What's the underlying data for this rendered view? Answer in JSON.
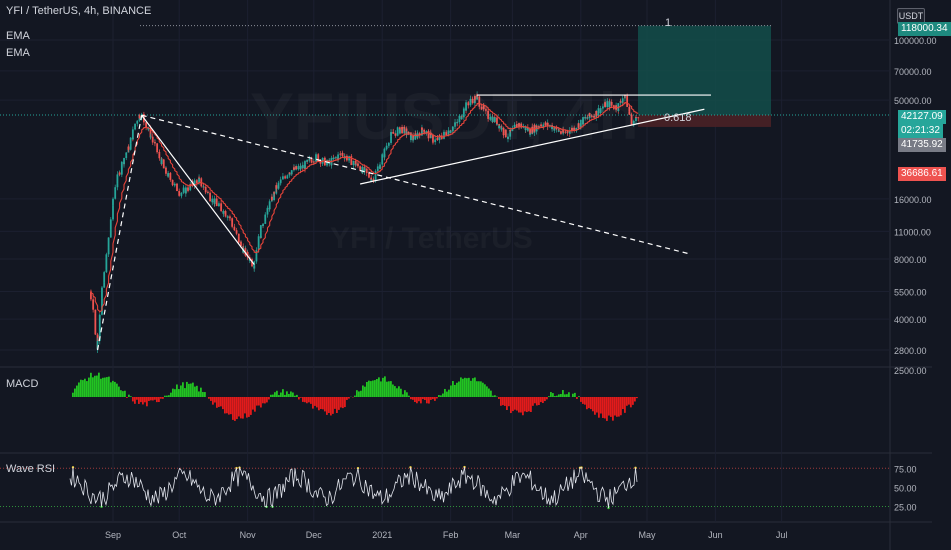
{
  "header": {
    "title": "YFI / TetherUS, 4h, BINANCE",
    "indicators": [
      "EMA",
      "EMA"
    ]
  },
  "watermark": {
    "ticker": "YFIUSDT, 4h",
    "name": "YFI / TetherUS"
  },
  "currency_button": "USDT",
  "axis": {
    "price_ticks": [
      "100000.00",
      "70000.00",
      "50000.00",
      "16000.00",
      "11000.00",
      "8000.00",
      "5500.00",
      "4000.00",
      "2800.00"
    ],
    "time_labels": [
      "Sep",
      "Oct",
      "Nov",
      "Dec",
      "2021",
      "Feb",
      "Mar",
      "Apr",
      "May",
      "Jun",
      "Jul"
    ],
    "macd_tick": "2500.00",
    "rsi_ticks": [
      "75.00",
      "50.00",
      "25.00"
    ]
  },
  "price_badges": {
    "target": "118000.34",
    "current": "42127.09",
    "countdown": "02:21:32",
    "ema": "41735.92",
    "stop": "36686.61"
  },
  "fib_labels": {
    "top": "1",
    "mid": "0.618"
  },
  "panes": {
    "macd": "MACD",
    "rsi": "Wave RSI"
  },
  "colors": {
    "background": "#131722",
    "bull": "#26a69a",
    "bear": "#ef5350",
    "macd_up": "#22c322",
    "macd_down": "#e31b1b",
    "ema": "#e8443a",
    "target_zone": "#134e4a",
    "stop_zone": "#4a2126"
  },
  "chart_data": {
    "type": "candlestick",
    "log_scale": true,
    "series_close": [
      [
        "2020-08-22",
        5500
      ],
      [
        "2020-08-24",
        4200
      ],
      [
        "2020-08-25",
        2800
      ],
      [
        "2020-08-27",
        5000
      ],
      [
        "2020-08-30",
        9000
      ],
      [
        "2020-09-02",
        18000
      ],
      [
        "2020-09-06",
        25000
      ],
      [
        "2020-09-09",
        30000
      ],
      [
        "2020-09-12",
        40000
      ],
      [
        "2020-09-14",
        43000
      ],
      [
        "2020-09-16",
        38000
      ],
      [
        "2020-09-20",
        30000
      ],
      [
        "2020-09-25",
        22000
      ],
      [
        "2020-10-02",
        17000
      ],
      [
        "2020-10-10",
        20000
      ],
      [
        "2020-10-16",
        16000
      ],
      [
        "2020-10-24",
        13000
      ],
      [
        "2020-10-30",
        9000
      ],
      [
        "2020-11-04",
        7500
      ],
      [
        "2020-11-08",
        12000
      ],
      [
        "2020-11-14",
        18000
      ],
      [
        "2020-11-20",
        22000
      ],
      [
        "2020-11-26",
        23000
      ],
      [
        "2020-12-02",
        26000
      ],
      [
        "2020-12-08",
        24000
      ],
      [
        "2020-12-14",
        27000
      ],
      [
        "2020-12-20",
        24000
      ],
      [
        "2020-12-24",
        22000
      ],
      [
        "2020-12-28",
        20000
      ],
      [
        "2021-01-01",
        25000
      ],
      [
        "2021-01-05",
        33000
      ],
      [
        "2021-01-10",
        36000
      ],
      [
        "2021-01-15",
        32000
      ],
      [
        "2021-01-20",
        36000
      ],
      [
        "2021-01-25",
        31000
      ],
      [
        "2021-01-30",
        34000
      ],
      [
        "2021-02-04",
        38000
      ],
      [
        "2021-02-09",
        48000
      ],
      [
        "2021-02-13",
        52000
      ],
      [
        "2021-02-17",
        43000
      ],
      [
        "2021-02-22",
        39000
      ],
      [
        "2021-02-27",
        33000
      ],
      [
        "2021-03-04",
        38000
      ],
      [
        "2021-03-09",
        35000
      ],
      [
        "2021-03-14",
        38000
      ],
      [
        "2021-03-19",
        37000
      ],
      [
        "2021-03-24",
        34000
      ],
      [
        "2021-03-29",
        36000
      ],
      [
        "2021-04-03",
        40000
      ],
      [
        "2021-04-08",
        43000
      ],
      [
        "2021-04-13",
        48000
      ],
      [
        "2021-04-18",
        46000
      ],
      [
        "2021-04-21",
        53000
      ],
      [
        "2021-04-23",
        44000
      ],
      [
        "2021-04-25",
        38000
      ],
      [
        "2021-04-27",
        42127
      ]
    ],
    "drawings": {
      "resistance": [
        [
          "2021-02-13",
          53000
        ],
        [
          "2021-05-30",
          53000
        ]
      ],
      "support": [
        [
          "2020-12-22",
          19000
        ],
        [
          "2021-05-27",
          45000
        ]
      ],
      "dashed_trend": [
        [
          "2020-09-14",
          42000
        ],
        [
          "2021-05-20",
          8500
        ]
      ],
      "left_dashed": [
        [
          "2020-08-25",
          2800
        ],
        [
          "2020-09-14",
          42000
        ]
      ],
      "down_leg": [
        [
          "2020-09-14",
          42000
        ],
        [
          "2020-11-04",
          7500
        ]
      ],
      "fib_top_level": 118000.34,
      "fib_618_level": 42127.09,
      "stop_level": 36686.61
    }
  }
}
